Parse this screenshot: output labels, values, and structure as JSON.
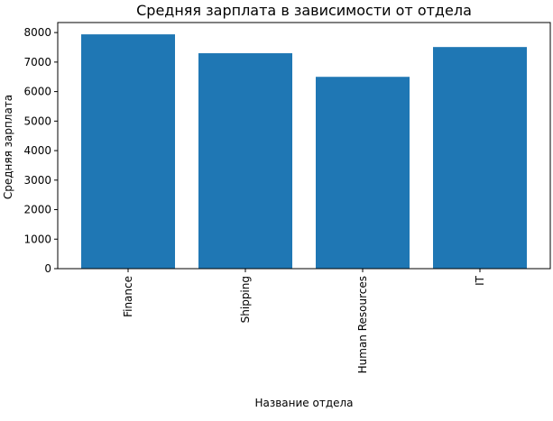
{
  "chart_data": {
    "type": "bar",
    "title": "Средняя зарплата в зависимости от отдела",
    "x_label": "Название отдела",
    "y_label": "Средняя зарплата",
    "categories": [
      "Finance",
      "Shipping",
      "Human Resources",
      "IT"
    ],
    "values": [
      7940,
      7300,
      6500,
      7510
    ],
    "color": "#1f77b4",
    "ylim": [
      0,
      8340
    ],
    "yticks": [
      0,
      1000,
      2000,
      3000,
      4000,
      5000,
      6000,
      7000,
      8000
    ],
    "grid": false
  }
}
